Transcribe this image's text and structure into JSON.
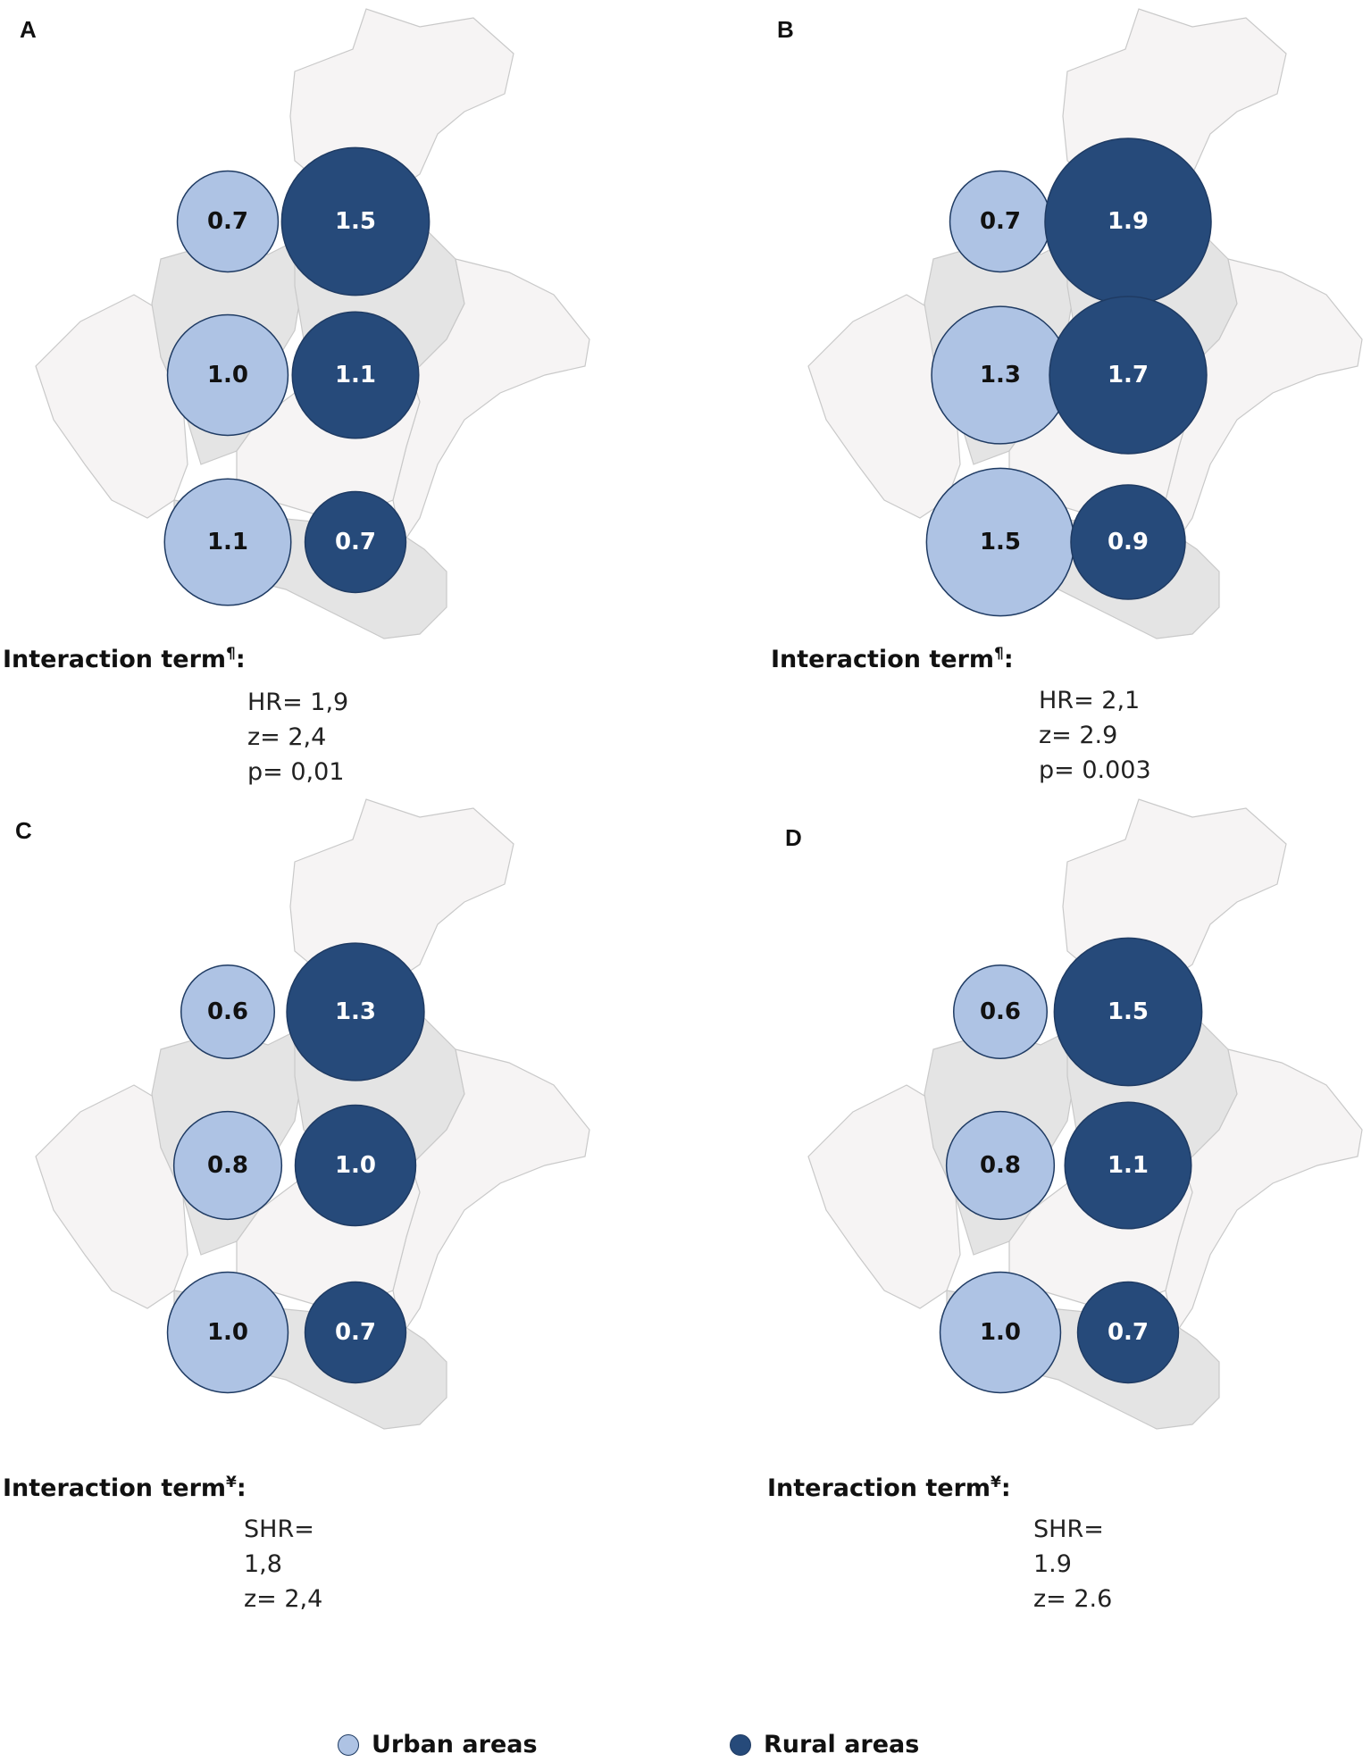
{
  "colors": {
    "urban": "#aec3e4",
    "rural": "#264a7a",
    "stroke": "#1f3b63",
    "region_light": "#f6f4f4",
    "region_dark": "#e4e4e4",
    "region_border": "#c9c9c9"
  },
  "panels": [
    {
      "letter": "A",
      "urban": [
        "0.7",
        "1.0",
        "1.1"
      ],
      "rural": [
        "1.5",
        "1.1",
        "0.7"
      ],
      "interaction_label": "Interaction term",
      "interaction_mark": "¶",
      "interaction_colon": ":",
      "stats": [
        "HR= 1,9",
        "z= 2,4",
        "p= 0,01"
      ]
    },
    {
      "letter": "B",
      "urban": [
        "0.7",
        "1.3",
        "1.5"
      ],
      "rural": [
        "1.9",
        "1.7",
        "0.9"
      ],
      "interaction_label": "Interaction term",
      "interaction_mark": "¶",
      "interaction_colon": ":",
      "stats": [
        "HR= 2,1",
        "z= 2.9",
        "p= 0.003"
      ]
    },
    {
      "letter": "C",
      "urban": [
        "0.6",
        "0.8",
        "1.0"
      ],
      "rural": [
        "1.3",
        "1.0",
        "0.7"
      ],
      "interaction_label": "Interaction term",
      "interaction_mark": "¥",
      "interaction_colon": ":",
      "stats": [
        "SHR=",
        "1,8",
        "z= 2,4"
      ]
    },
    {
      "letter": "D",
      "urban": [
        "0.6",
        "0.8",
        "1.0"
      ],
      "rural": [
        "1.5",
        "1.1",
        "0.7"
      ],
      "interaction_label": "Interaction term",
      "interaction_mark": "¥",
      "interaction_colon": ":",
      "stats": [
        "SHR=",
        "1.9",
        "z= 2.6"
      ]
    }
  ],
  "legend": {
    "urban_label": "Urban areas",
    "rural_label": "Rural areas"
  }
}
